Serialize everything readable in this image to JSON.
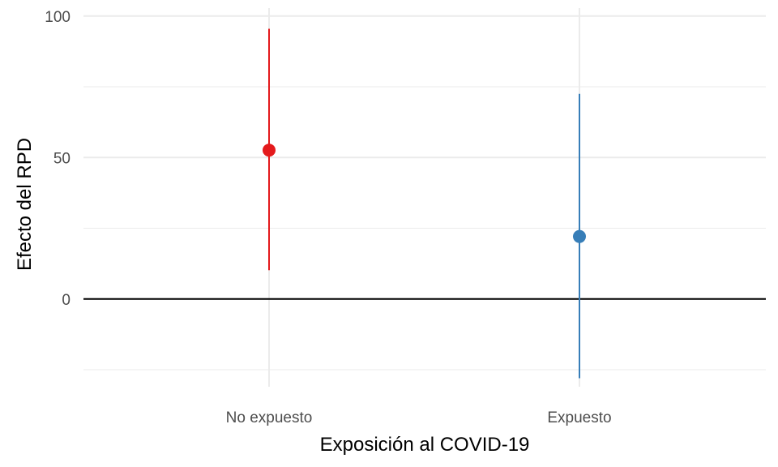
{
  "chart_data": {
    "type": "pointrange",
    "title": "",
    "xlabel": "Exposición al COVID-19",
    "ylabel": "Efecto del RPD",
    "categories": [
      "No expuesto",
      "Expuesto"
    ],
    "series": [
      {
        "name": "No expuesto",
        "estimate": 52.6,
        "lower": 10.2,
        "upper": 95.5,
        "color": "#e41a1c"
      },
      {
        "name": "Expuesto",
        "estimate": 22.1,
        "lower": -28.0,
        "upper": 72.5,
        "color": "#377eb8"
      }
    ],
    "ylim": [
      -31,
      102.8
    ],
    "yticks": [
      0,
      50,
      100
    ],
    "ytick_labels": [
      "0",
      "50",
      "100"
    ],
    "minor_yticks": [
      -25,
      25,
      75
    ],
    "reference_line_y": 0,
    "grid": true,
    "legend": "none"
  }
}
